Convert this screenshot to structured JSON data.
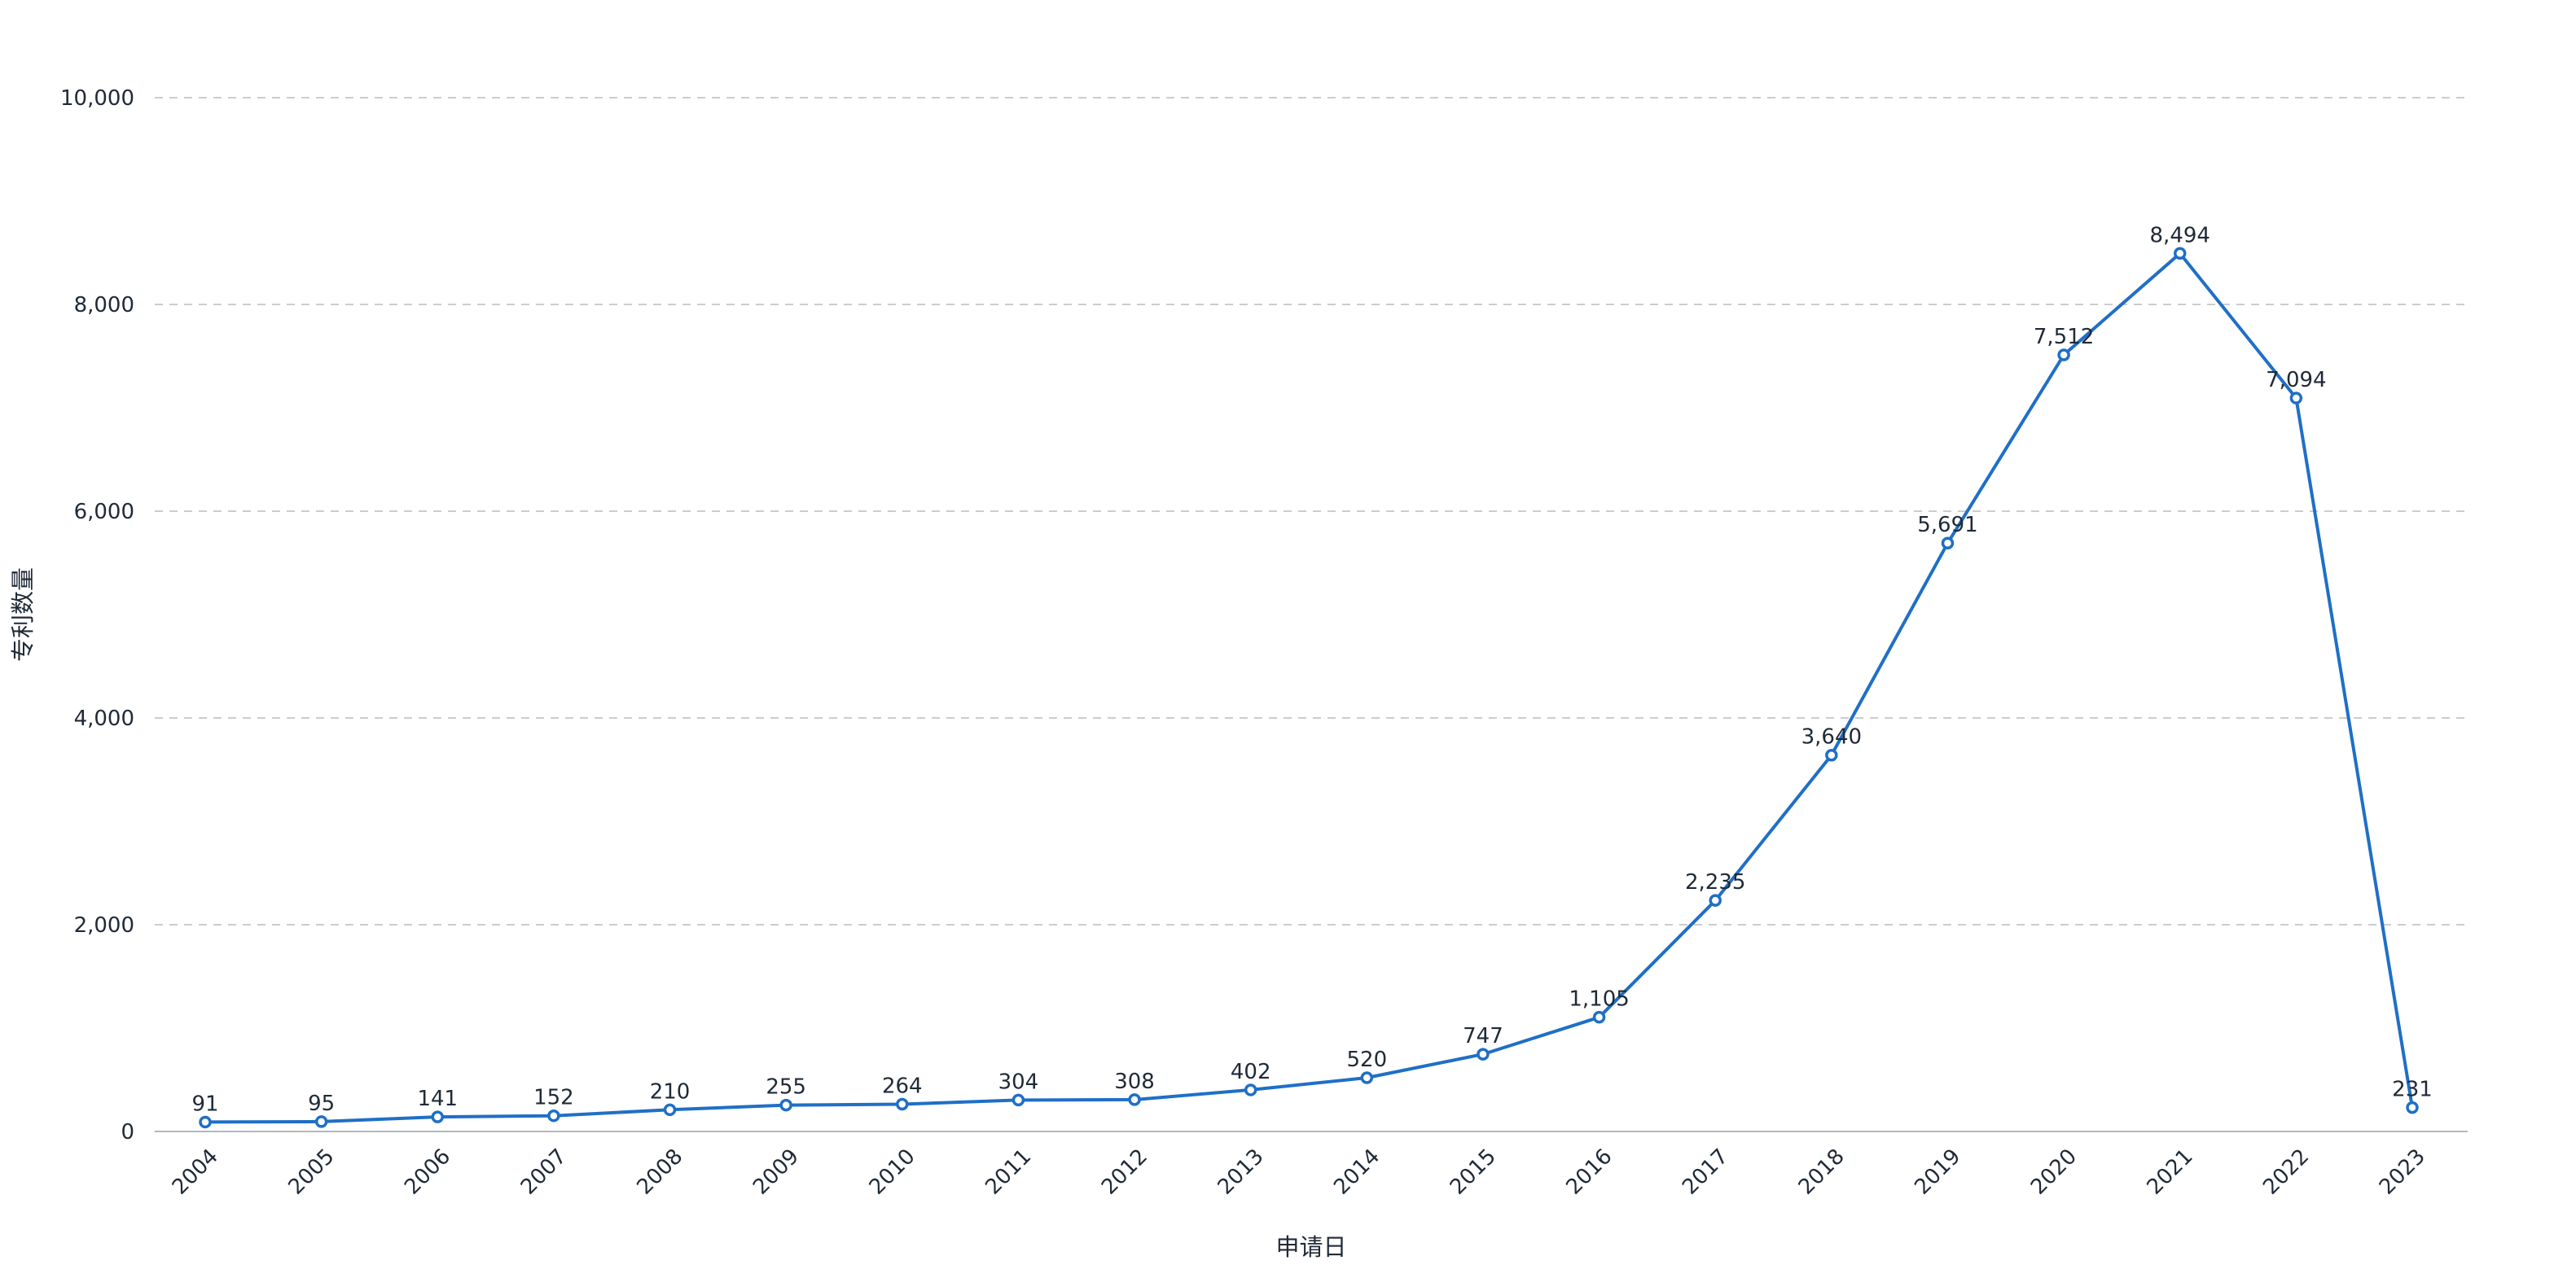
{
  "chart_data": {
    "type": "line",
    "title": "",
    "xlabel": "申请日",
    "ylabel": "专利数量",
    "x": [
      "2004",
      "2005",
      "2006",
      "2007",
      "2008",
      "2009",
      "2010",
      "2011",
      "2012",
      "2013",
      "2014",
      "2015",
      "2016",
      "2017",
      "2018",
      "2019",
      "2020",
      "2021",
      "2022",
      "2023"
    ],
    "series": [
      {
        "name": "",
        "values": [
          91,
          95,
          141,
          152,
          210,
          255,
          264,
          304,
          308,
          402,
          520,
          747,
          1105,
          2235,
          3640,
          5691,
          7512,
          8494,
          7094,
          231
        ],
        "labels": [
          "91",
          "95",
          "141",
          "152",
          "210",
          "255",
          "264",
          "304",
          "308",
          "402",
          "520",
          "747",
          "1,105",
          "2,235",
          "3,640",
          "5,691",
          "7,512",
          "8,494",
          "7,094",
          "231"
        ]
      }
    ],
    "ylim": [
      0,
      10000
    ],
    "yticks": [
      0,
      2000,
      4000,
      6000,
      8000,
      10000
    ],
    "ytick_labels": [
      "0",
      "2,000",
      "4,000",
      "6,000",
      "8,000",
      "10,000"
    ],
    "grid": "horizontal dashed",
    "legend": "none",
    "colors": {
      "series": "#1f6fc6",
      "grid": "#cccccc",
      "axis": "#b0b6bc",
      "text": "#1f2a37"
    }
  }
}
